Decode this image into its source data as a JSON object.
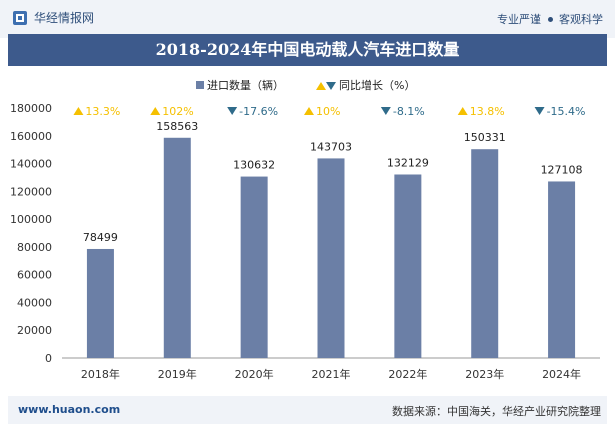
{
  "header": {
    "brand": "华经情报网",
    "tagline_left": "专业严谨",
    "tagline_right": "客观科学"
  },
  "title": "2018-2024年中国电动载人汽车进口数量",
  "footer": {
    "website": "www.huaon.com",
    "source": "数据来源：中国海关，华经产业研究院整理"
  },
  "colors": {
    "bar": "#6b7fa6",
    "up": "#f5c000",
    "down": "#2f6b8a",
    "header_band": "#3d5a8c",
    "footer_text": "#1f4e8c"
  },
  "chart_data": {
    "type": "bar",
    "categories": [
      "2018年",
      "2019年",
      "2020年",
      "2021年",
      "2022年",
      "2023年",
      "2024年"
    ],
    "series": [
      {
        "name": "进口数量（辆）",
        "values": [
          78499,
          158563,
          130632,
          143703,
          132129,
          150331,
          127108
        ],
        "labels": [
          "78499",
          "158563",
          "130632",
          "143703",
          "132129",
          "150331",
          "127108"
        ]
      },
      {
        "name": "同比增长（%）",
        "values": [
          13.3,
          102,
          -17.6,
          10,
          -8.1,
          13.8,
          -15.4
        ],
        "labels": [
          "13.3%",
          "102%",
          "-17.6%",
          "10%",
          "-8.1%",
          "13.8%",
          "-15.4%"
        ],
        "direction": [
          "up",
          "up",
          "down",
          "up",
          "down",
          "up",
          "down"
        ]
      }
    ],
    "ylim": [
      0,
      180000
    ],
    "yticks": [
      0,
      20000,
      40000,
      60000,
      80000,
      100000,
      120000,
      140000,
      160000,
      180000
    ],
    "grid": false,
    "legend": "top-center"
  }
}
